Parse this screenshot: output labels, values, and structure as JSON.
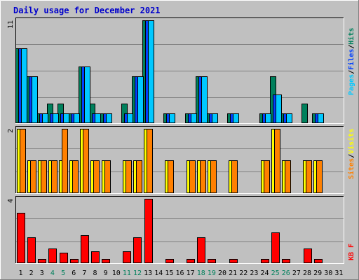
{
  "title": "Daily usage for December 2021",
  "colors": {
    "page_bg": "#c0c0c0",
    "plot_bg": "#c0c0c0",
    "title": "#0000cc",
    "hits": "#00805c",
    "files": "#0040ff",
    "pages": "#00c8ff",
    "visits": "#ffff00",
    "sites": "#ff8000",
    "kb": "#ff0000",
    "weekend_day": "#00805c",
    "weekday": "#000000"
  },
  "right_labels": {
    "top": [
      {
        "text": "Pages",
        "series": "pages"
      },
      {
        "text": "/",
        "series": "sep"
      },
      {
        "text": "Files",
        "series": "files"
      },
      {
        "text": "/",
        "series": "sep"
      },
      {
        "text": "Hits",
        "series": "hits"
      }
    ],
    "middle": [
      {
        "text": "Sites",
        "series": "sites"
      },
      {
        "text": "/",
        "series": "sep"
      },
      {
        "text": "Visits",
        "series": "visits"
      }
    ],
    "bottom": [
      {
        "text": "KB F",
        "series": "kb"
      }
    ]
  },
  "chart_data": [
    {
      "type": "bar",
      "panel": "hits-files-pages",
      "y_max_label": "11",
      "ylim": [
        0,
        11
      ],
      "categories": [
        "1",
        "2",
        "3",
        "4",
        "5",
        "6",
        "7",
        "8",
        "9",
        "10",
        "11",
        "12",
        "13",
        "14",
        "15",
        "16",
        "17",
        "18",
        "19",
        "20",
        "21",
        "22",
        "23",
        "24",
        "25",
        "26",
        "27",
        "28",
        "29",
        "30",
        "31"
      ],
      "weekend_days": [
        4,
        5,
        11,
        12,
        18,
        19,
        25,
        26
      ],
      "series": [
        {
          "name": "Hits",
          "values": [
            8,
            5,
            1,
            2,
            2,
            1,
            6,
            2,
            1,
            0,
            2,
            5,
            11,
            0,
            1,
            0,
            1,
            5,
            1,
            0,
            1,
            0,
            0,
            1,
            5,
            1,
            0,
            2,
            1,
            0,
            0
          ]
        },
        {
          "name": "Files",
          "values": [
            8,
            5,
            1,
            1,
            1,
            1,
            6,
            1,
            1,
            0,
            1,
            5,
            11,
            0,
            1,
            0,
            1,
            5,
            1,
            0,
            1,
            0,
            0,
            1,
            3,
            1,
            0,
            0,
            1,
            0,
            0
          ]
        },
        {
          "name": "Pages",
          "values": [
            8,
            5,
            1,
            1,
            1,
            1,
            6,
            1,
            1,
            0,
            1,
            5,
            11,
            0,
            1,
            0,
            1,
            5,
            1,
            0,
            1,
            0,
            0,
            1,
            3,
            1,
            0,
            0,
            1,
            0,
            0
          ]
        }
      ]
    },
    {
      "type": "bar",
      "panel": "visits-sites",
      "y_max_label": "2",
      "ylim": [
        0,
        2
      ],
      "series": [
        {
          "name": "Visits",
          "values": [
            2,
            1,
            1,
            1,
            1,
            1,
            2,
            1,
            1,
            0,
            1,
            1,
            2,
            0,
            1,
            0,
            1,
            1,
            1,
            0,
            1,
            0,
            0,
            1,
            2,
            1,
            0,
            1,
            1,
            0,
            0
          ]
        },
        {
          "name": "Sites",
          "values": [
            2,
            1,
            1,
            1,
            2,
            1,
            2,
            1,
            1,
            0,
            1,
            1,
            2,
            0,
            1,
            0,
            1,
            1,
            1,
            0,
            1,
            0,
            0,
            1,
            2,
            1,
            0,
            1,
            1,
            0,
            0
          ]
        }
      ]
    },
    {
      "type": "bar",
      "panel": "kbytes",
      "y_max_label": "4",
      "ylim": [
        0,
        4
      ],
      "series": [
        {
          "name": "KB F",
          "values": [
            3.1,
            1.6,
            0.2,
            0.9,
            0.6,
            0.2,
            1.7,
            0.7,
            0.2,
            0,
            0.7,
            1.6,
            4.0,
            0,
            0.2,
            0,
            0.2,
            1.6,
            0.2,
            0,
            0.2,
            0,
            0,
            0.2,
            1.9,
            0.2,
            0,
            0.9,
            0.2,
            0,
            0
          ]
        }
      ]
    }
  ]
}
